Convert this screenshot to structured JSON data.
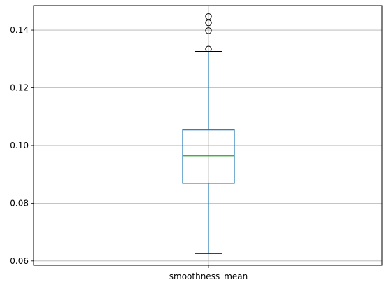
{
  "chart_data": {
    "type": "box",
    "title": "",
    "xlabel": "",
    "ylabel": "",
    "categories": [
      "smoothness_mean"
    ],
    "ylim": [
      0.0585,
      0.1485
    ],
    "yticks": [
      0.06,
      0.08,
      0.1,
      0.12,
      0.14
    ],
    "ytick_labels": [
      "0.06",
      "0.08",
      "0.10",
      "0.12",
      "0.14"
    ],
    "grid": true,
    "box": {
      "name": "smoothness_mean",
      "whisker_low": 0.0626,
      "q1": 0.0869,
      "median": 0.0964,
      "q3": 0.1054,
      "whisker_high": 0.1326
    },
    "outliers": [
      0.1334,
      0.1398,
      0.1425,
      0.1447
    ],
    "colors": {
      "box": "#1f77b4",
      "whisker": "#1f77b4",
      "median": "#2ca02c",
      "cap": "#000000",
      "outlier": "#000000",
      "grid": "#b0b0b0"
    }
  }
}
